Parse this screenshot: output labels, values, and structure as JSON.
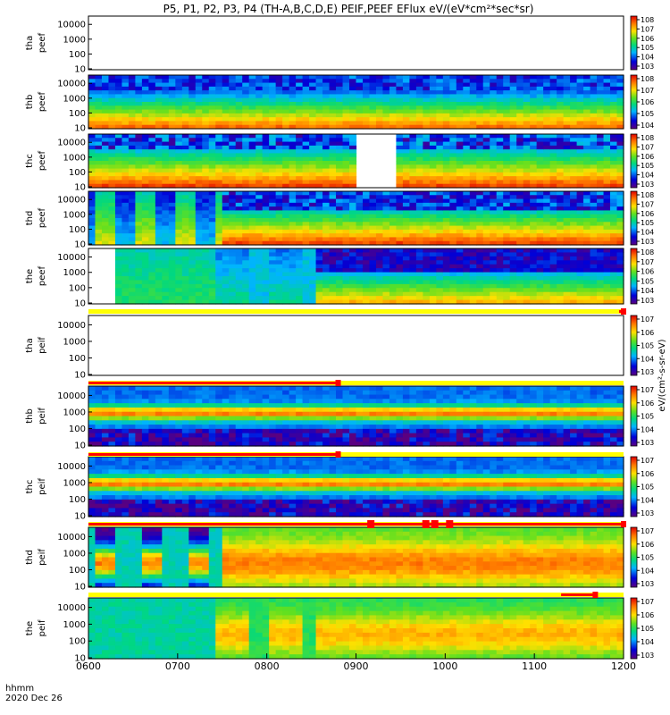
{
  "title": "P5, P1, P2, P3, P4 (TH-A,B,C,D,E) PEIF,PEEF EFlux eV/(eV*cm²*sec*sr)",
  "colorbar_label_unit": "eV/(cm²-s-sr-eV)",
  "footer": {
    "time_label": "hhmm",
    "date_label": "2020 Dec 26"
  },
  "chart_data": {
    "type": "heatmap",
    "x_axis": {
      "range": [
        "0600",
        "1200"
      ],
      "ticks": [
        "0600",
        "0700",
        "0800",
        "0900",
        "1000",
        "1100",
        "1200"
      ]
    },
    "y_scale": "log",
    "y_ticks": [
      "10",
      "100",
      "1000",
      "10000"
    ],
    "colorscale": "rainbow (purple-blue-cyan-green-yellow-red)",
    "panels": [
      {
        "id": "tha_peef",
        "label": "tha peef",
        "species": "electron",
        "pattern": "empty",
        "colorbar_ticks": [
          "10^3",
          "10^4",
          "10^5",
          "10^6",
          "10^7",
          "10^8"
        ]
      },
      {
        "id": "thb_peef",
        "label": "thb peef",
        "species": "electron",
        "pattern": "steady",
        "colorbar_ticks": [
          "10^4",
          "10^5",
          "10^6",
          "10^7",
          "10^8"
        ]
      },
      {
        "id": "thc_peef",
        "label": "thc peef",
        "species": "electron",
        "pattern": "steady_gap",
        "gap": [
          "0856",
          "0926"
        ],
        "colorbar_ticks": [
          "10^3",
          "10^4",
          "10^5",
          "10^6",
          "10^7",
          "10^8"
        ]
      },
      {
        "id": "thd_peef",
        "label": "thd peef",
        "species": "electron",
        "pattern": "bursts_then_steady",
        "burst_until": "0740",
        "colorbar_ticks": [
          "10^3",
          "10^4",
          "10^5",
          "10^6",
          "10^7",
          "10^8"
        ]
      },
      {
        "id": "the_peef",
        "label": "the peef",
        "species": "electron",
        "pattern": "patchy_then_steady",
        "patch_until": "0850",
        "colorbar_ticks": [
          "10^3",
          "10^4",
          "10^5",
          "10^6",
          "10^7",
          "10^8"
        ]
      },
      {
        "id": "tha_peif",
        "label": "tha peif",
        "species": "ion",
        "pattern": "empty",
        "colorbar_ticks": [
          "10^3",
          "10^4",
          "10^5",
          "10^6",
          "10^7"
        ]
      },
      {
        "id": "thb_peif",
        "label": "thb peif",
        "species": "ion",
        "pattern": "steady_ion",
        "colorbar_ticks": [
          "10^3",
          "10^4",
          "10^5",
          "10^6",
          "10^7"
        ]
      },
      {
        "id": "thc_peif",
        "label": "thc peif",
        "species": "ion",
        "pattern": "steady_ion",
        "colorbar_ticks": [
          "10^3",
          "10^4",
          "10^5",
          "10^6",
          "10^7"
        ]
      },
      {
        "id": "thd_peif",
        "label": "thd peif",
        "species": "ion",
        "pattern": "bursts_ion",
        "burst_until": "0740",
        "colorbar_ticks": [
          "10^3",
          "10^4",
          "10^5",
          "10^6",
          "10^7"
        ]
      },
      {
        "id": "the_peif",
        "label": "the peif",
        "species": "ion",
        "pattern": "patchy_ion",
        "patch_until": "0850",
        "colorbar_ticks": [
          "10^3",
          "10^4",
          "10^5",
          "10^6",
          "10^7"
        ]
      }
    ],
    "mode_bars": [
      {
        "between": [
          "tha_peef",
          "the_peef"
        ],
        "red_from": null,
        "red_to": null
      },
      {
        "between": [
          "the_peef",
          "tha_peif"
        ],
        "red_from": "1157",
        "red_to": "1200"
      },
      {
        "between": [
          "tha_peif",
          "thb_peif"
        ],
        "red_from": "0600",
        "red_to": "0848"
      },
      {
        "between": [
          "thb_peif",
          "thc_peif"
        ],
        "red_from": "0600",
        "red_to": "0848"
      },
      {
        "between": [
          "thc_peif",
          "thd_peif"
        ],
        "red_from": "0600",
        "red_to": "1200",
        "markers": [
          "0910",
          "0947",
          "0953",
          "1003"
        ]
      },
      {
        "between": [
          "thd_peif",
          "the_peif"
        ],
        "red_from": "1118",
        "red_to": "1141"
      }
    ]
  }
}
